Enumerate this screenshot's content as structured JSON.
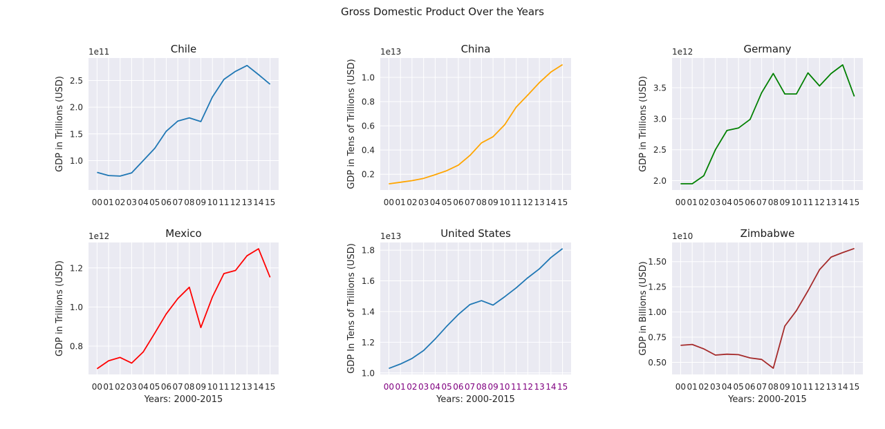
{
  "figure": {
    "title": "Gross Domestic Product Over the Years"
  },
  "chart_data": [
    {
      "type": "line",
      "title": "Chile",
      "xlabel": "",
      "ylabel": "GDP in Trillions (USD)",
      "multiplier_label": "1e11",
      "categories": [
        "00",
        "01",
        "02",
        "03",
        "04",
        "05",
        "06",
        "07",
        "08",
        "09",
        "10",
        "11",
        "12",
        "13",
        "14",
        "15"
      ],
      "values": [
        0.78,
        0.72,
        0.71,
        0.77,
        1.0,
        1.23,
        1.55,
        1.74,
        1.8,
        1.73,
        2.19,
        2.52,
        2.67,
        2.78,
        2.61,
        2.43
      ],
      "ylim": [
        0.45,
        2.92
      ],
      "yticks": [
        1.0,
        1.5,
        2.0,
        2.5
      ],
      "ytick_labels": [
        "1.0",
        "1.5",
        "2.0",
        "2.5"
      ],
      "color": "#1f77b4",
      "xtick_color": "#262626",
      "grid": true
    },
    {
      "type": "line",
      "title": "China",
      "xlabel": "",
      "ylabel": "GDP in Tens of Trillions (USD)",
      "multiplier_label": "1e13",
      "categories": [
        "00",
        "01",
        "02",
        "03",
        "04",
        "05",
        "06",
        "07",
        "08",
        "09",
        "10",
        "11",
        "12",
        "13",
        "14",
        "15"
      ],
      "values": [
        0.121,
        0.134,
        0.147,
        0.166,
        0.196,
        0.229,
        0.275,
        0.355,
        0.459,
        0.51,
        0.609,
        0.755,
        0.854,
        0.957,
        1.044,
        1.106
      ],
      "ylim": [
        0.07,
        1.16
      ],
      "yticks": [
        0.2,
        0.4,
        0.6,
        0.8,
        1.0
      ],
      "ytick_labels": [
        "0.2",
        "0.4",
        "0.6",
        "0.8",
        "1.0"
      ],
      "color": "#ffa500",
      "xtick_color": "#262626",
      "grid": true
    },
    {
      "type": "line",
      "title": "Germany",
      "xlabel": "",
      "ylabel": "GDP in Trillions (USD)",
      "multiplier_label": "1e12",
      "categories": [
        "00",
        "01",
        "02",
        "03",
        "04",
        "05",
        "06",
        "07",
        "08",
        "09",
        "10",
        "11",
        "12",
        "13",
        "14",
        "15"
      ],
      "values": [
        1.95,
        1.95,
        2.08,
        2.5,
        2.81,
        2.85,
        2.99,
        3.42,
        3.73,
        3.4,
        3.4,
        3.74,
        3.53,
        3.73,
        3.87,
        3.36
      ],
      "ylim": [
        1.85,
        3.98
      ],
      "yticks": [
        2.0,
        2.5,
        3.0,
        3.5
      ],
      "ytick_labels": [
        "2.0",
        "2.5",
        "3.0",
        "3.5"
      ],
      "color": "#008000",
      "xtick_color": "#262626",
      "grid": true
    },
    {
      "type": "line",
      "title": "Mexico",
      "xlabel": "Years: 2000-2015",
      "ylabel": "GDP in Trillions (USD)",
      "multiplier_label": "1e12",
      "categories": [
        "00",
        "01",
        "02",
        "03",
        "04",
        "05",
        "06",
        "07",
        "08",
        "09",
        "10",
        "11",
        "12",
        "13",
        "14",
        "15"
      ],
      "values": [
        0.684,
        0.725,
        0.742,
        0.713,
        0.77,
        0.866,
        0.965,
        1.043,
        1.101,
        0.895,
        1.051,
        1.171,
        1.187,
        1.262,
        1.298,
        1.152
      ],
      "ylim": [
        0.655,
        1.33
      ],
      "yticks": [
        0.8,
        1.0,
        1.2
      ],
      "ytick_labels": [
        "0.8",
        "1.0",
        "1.2"
      ],
      "color": "#ff0000",
      "xtick_color": "#262626",
      "grid": true
    },
    {
      "type": "line",
      "title": "United States",
      "xlabel": "Years: 2000-2015",
      "ylabel": "GDP In Tens of Trillions (USD)",
      "multiplier_label": "1e13",
      "categories": [
        "00",
        "01",
        "02",
        "03",
        "04",
        "05",
        "06",
        "07",
        "08",
        "09",
        "10",
        "11",
        "12",
        "13",
        "14",
        "15"
      ],
      "values": [
        1.029,
        1.058,
        1.094,
        1.146,
        1.221,
        1.304,
        1.381,
        1.445,
        1.471,
        1.442,
        1.496,
        1.554,
        1.62,
        1.678,
        1.752,
        1.81
      ],
      "ylim": [
        0.99,
        1.85
      ],
      "yticks": [
        1.0,
        1.2,
        1.4,
        1.6,
        1.8
      ],
      "ytick_labels": [
        "1.0",
        "1.2",
        "1.4",
        "1.6",
        "1.8"
      ],
      "color": "#1f77b4",
      "xtick_color": "#800080",
      "grid": true
    },
    {
      "type": "line",
      "title": "Zimbabwe",
      "xlabel": "Years: 2000-2015",
      "ylabel": "GDP in Billions (USD)",
      "multiplier_label": "1e10",
      "categories": [
        "00",
        "01",
        "02",
        "03",
        "04",
        "05",
        "06",
        "07",
        "08",
        "09",
        "10",
        "11",
        "12",
        "13",
        "14",
        "15"
      ],
      "values": [
        0.669,
        0.678,
        0.634,
        0.572,
        0.581,
        0.576,
        0.544,
        0.529,
        0.442,
        0.86,
        1.014,
        1.21,
        1.42,
        1.545,
        1.59,
        1.63
      ],
      "ylim": [
        0.38,
        1.69
      ],
      "yticks": [
        0.5,
        0.75,
        1.0,
        1.25,
        1.5
      ],
      "ytick_labels": [
        "0.50",
        "0.75",
        "1.00",
        "1.25",
        "1.50"
      ],
      "color": "#a52a2a",
      "xtick_color": "#262626",
      "grid": true
    }
  ]
}
